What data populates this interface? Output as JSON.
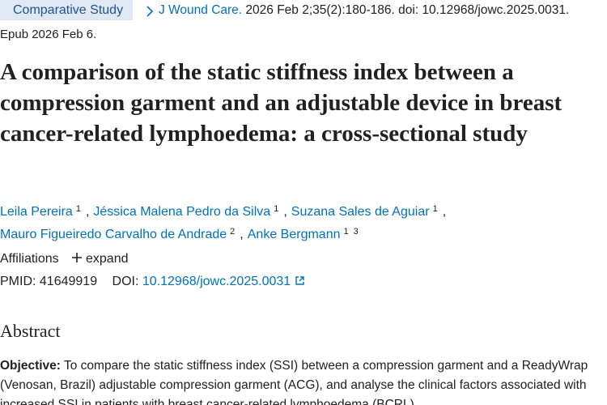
{
  "header": {
    "publication_type": "Comparative Study",
    "citation": {
      "journal": "J Wound Care.",
      "details": "2026 Feb 2;35(2):180-186. doi: 10.12968/jowc.2025.0031.",
      "epub": "Epub 2026 Feb 6."
    }
  },
  "article": {
    "title": "A comparison of the static stiffness index between a compression garment and an adjustable device in breast cancer-related lymphoedema: a cross-sectional study",
    "authors": [
      {
        "name": "Leila Pereira",
        "affiliations": [
          "1"
        ]
      },
      {
        "name": "Jéssica Malena Pedro da Silva",
        "affiliations": [
          "1"
        ]
      },
      {
        "name": "Suzana Sales de Aguiar",
        "affiliations": [
          "1"
        ]
      },
      {
        "name": "Mauro Figueiredo Carvalho de Andrade",
        "affiliations": [
          "2"
        ]
      },
      {
        "name": "Anke Bergmann",
        "affiliations": [
          "1",
          "3"
        ]
      }
    ],
    "affiliations_label": "Affiliations",
    "expand_label": "expand",
    "pmid_label": "PMID:",
    "pmid": "41649919",
    "doi_label": "DOI:",
    "doi": "10.12968/jowc.2025.0031"
  },
  "abstract": {
    "heading": "Abstract",
    "sections": [
      {
        "label": "Objective:",
        "text": "To compare the static stiffness index (SSI) between a compression garment and a ReadyWrap (Venosan, Brazil) adjustable compression garment (ACG), and analyse the clinical factors associated with increased SSI in patients with breast cancer-related lymphoedema (BCRL)."
      }
    ]
  }
}
